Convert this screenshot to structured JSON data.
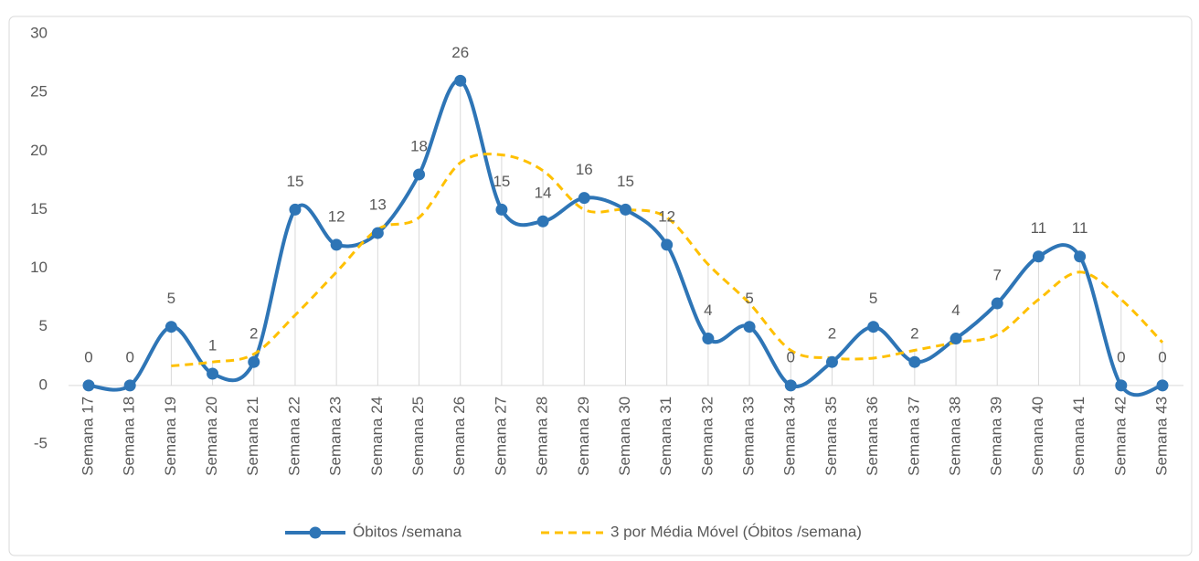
{
  "chart_data": {
    "type": "line",
    "categories": [
      "Semana 17",
      "Semana 18",
      "Semana 19",
      "Semana 20",
      "Semana 21",
      "Semana 22",
      "Semana 23",
      "Semana 24",
      "Semana 25",
      "Semana 26",
      "Semana 27",
      "Semana 28",
      "Semana 29",
      "Semana 30",
      "Semana 31",
      "Semana 32",
      "Semana 33",
      "Semana 34",
      "Semana 35",
      "Semana 36",
      "Semana 37",
      "Semana 38",
      "Semana 39",
      "Semana 40",
      "Semana 41",
      "Semana 42",
      "Semana 43"
    ],
    "series": [
      {
        "name": "Óbitos /semana",
        "color": "#2e75b6",
        "values": [
          0,
          0,
          5,
          1,
          2,
          15,
          12,
          13,
          18,
          26,
          15,
          14,
          16,
          15,
          12,
          4,
          5,
          0,
          2,
          5,
          2,
          4,
          7,
          11,
          11,
          0,
          0
        ]
      },
      {
        "name": "3 por Média Móvel (Óbitos /semana)",
        "color": "#ffc000",
        "values": [
          null,
          null,
          1.67,
          2,
          2.67,
          6,
          9.67,
          13.33,
          14.33,
          19,
          19.67,
          18.33,
          15,
          15,
          14.33,
          10.33,
          7,
          3,
          2.33,
          2.33,
          3,
          3.67,
          4.33,
          7.33,
          9.67,
          7.33,
          3.67
        ]
      }
    ],
    "ylim": [
      -5,
      30
    ],
    "yticks": [
      -5,
      0,
      5,
      10,
      15,
      20,
      25,
      30
    ],
    "legend": "bottom"
  }
}
